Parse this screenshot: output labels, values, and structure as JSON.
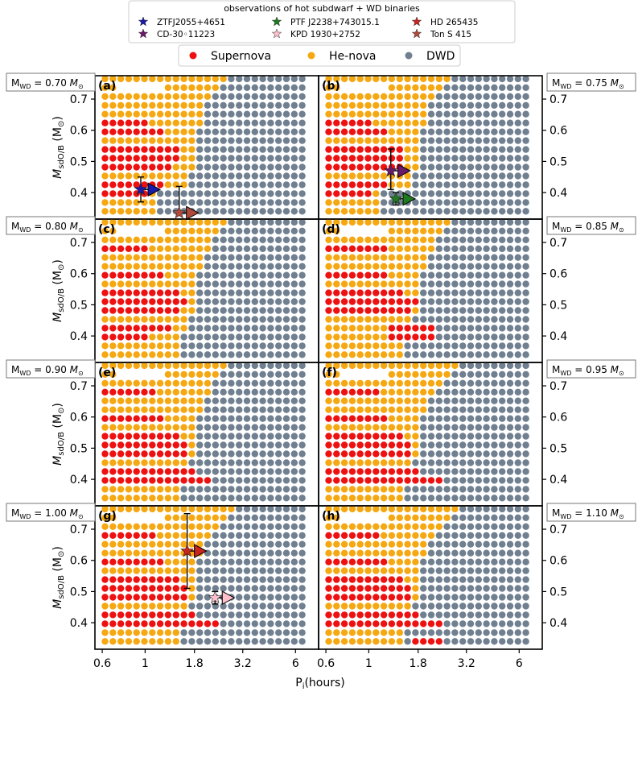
{
  "chart_data": {
    "type": "scatter",
    "title": "",
    "xlabel": "P",
    "xlabel_sub": "i",
    "xlabel_unit": "(hours)",
    "ylabel_main": "M",
    "ylabel_sub": "sdO/B",
    "ylabel_unit": "(M",
    "ylabel_close": ")",
    "xscale": "log",
    "xlim": [
      0.55,
      7.9
    ],
    "ylim": [
      0.315,
      0.775
    ],
    "xticks": [
      0.6,
      1,
      1.8,
      3.2,
      6
    ],
    "xtick_labels": [
      "0.6",
      "1",
      "1.8",
      "3.2",
      "6"
    ],
    "yticks": [
      0.4,
      0.5,
      0.6,
      0.7
    ],
    "ytick_labels": [
      "0.4",
      "0.5",
      "0.6",
      "0.7"
    ],
    "legend_obs_title": "observations of hot subdwarf + WD binaries",
    "observations": [
      {
        "name": "ZTFJ2055+4651",
        "color": "#1a1aa6"
      },
      {
        "name": "PTF J2238+743015.1",
        "color": "#1e7a1e"
      },
      {
        "name": "HD 265435",
        "color": "#c8251e"
      },
      {
        "name": "CD-30◦11223",
        "color": "#6a1a6a"
      },
      {
        "name": "KPD 1930+2752",
        "color": "#ffc0cb"
      },
      {
        "name": "Ton S 415",
        "color": "#b04a3a"
      }
    ],
    "outcomes": [
      {
        "name": "Supernova",
        "color": "#ee1111"
      },
      {
        "name": "He-nova",
        "color": "#f5a811"
      },
      {
        "name": "DWD",
        "color": "#708090"
      }
    ],
    "panels": [
      {
        "label": "(a)",
        "mwd_text": "0.70",
        "hist": [
          1.15,
          1.15,
          1.1,
          1.7,
          1.7,
          1.75,
          1.75,
          1.75,
          1.75,
          1.8,
          2.0,
          2.0,
          2.1,
          2.15,
          2.4,
          2.6
        ],
        "sn": [
          [
            0.62,
            1.0,
            0.635
          ],
          [
            0.62,
            1.2,
            0.59
          ],
          [
            0.62,
            1.45,
            0.55
          ],
          [
            0.62,
            1.45,
            0.51
          ],
          [
            0.62,
            1.4,
            0.47
          ],
          [
            0.62,
            1.3,
            0.43
          ],
          [
            0.62,
            1.05,
            0.405
          ]
        ],
        "obs": [
          {
            "color": "#1a1aa6",
            "p": 0.95,
            "m": 0.41,
            "elo": 0.04,
            "ehi": 0.04,
            "arrow": true
          },
          {
            "color": "#b04a3a",
            "p": 1.5,
            "m": 0.335,
            "elo": 0.0,
            "ehi": 0.085,
            "arrow": true
          }
        ]
      },
      {
        "label": "(b)",
        "mwd_text": "0.75",
        "hist": [
          1.15,
          1.15,
          1.1,
          1.7,
          1.7,
          1.75,
          1.75,
          1.75,
          1.75,
          1.8,
          2.0,
          2.0,
          2.1,
          2.15,
          2.4,
          2.6
        ],
        "sn": [
          [
            0.62,
            1.0,
            0.635
          ],
          [
            0.62,
            1.2,
            0.59
          ],
          [
            0.62,
            1.45,
            0.55
          ],
          [
            0.62,
            1.45,
            0.51
          ],
          [
            0.62,
            1.55,
            0.47
          ],
          [
            0.62,
            1.3,
            0.43
          ],
          [
            0.62,
            1.05,
            0.405
          ]
        ],
        "obs": [
          {
            "color": "#6a1a6a",
            "p": 1.3,
            "m": 0.47,
            "elo": 0.06,
            "ehi": 0.07,
            "arrow": true
          },
          {
            "color": "#1e7a1e",
            "p": 1.38,
            "m": 0.38,
            "elo": 0.02,
            "ehi": 0.02,
            "arrow": true
          }
        ]
      },
      {
        "label": "(c)",
        "mwd_text": "0.80",
        "hist": [
          1.5,
          1.5,
          1.5,
          1.7,
          1.7,
          1.75,
          1.75,
          1.75,
          1.75,
          1.8,
          2.0,
          2.05,
          2.15,
          2.2,
          2.4,
          2.7
        ],
        "sn": [
          [
            0.62,
            1.0,
            0.68
          ],
          [
            0.62,
            1.2,
            0.59
          ],
          [
            0.62,
            1.45,
            0.55
          ],
          [
            0.62,
            1.6,
            0.51
          ],
          [
            0.62,
            1.55,
            0.47
          ],
          [
            0.62,
            1.4,
            0.43
          ],
          [
            0.62,
            1.05,
            0.405
          ]
        ],
        "obs": []
      },
      {
        "label": "(d)",
        "mwd_text": "0.85",
        "hist": [
          1.5,
          1.5,
          1.5,
          1.7,
          1.7,
          1.75,
          1.75,
          1.75,
          1.75,
          1.8,
          2.0,
          2.1,
          2.2,
          2.3,
          2.45,
          2.7
        ],
        "sn": [
          [
            0.62,
            1.2,
            0.68
          ],
          [
            0.62,
            1.3,
            0.59
          ],
          [
            0.62,
            1.5,
            0.55
          ],
          [
            0.62,
            1.75,
            0.51
          ],
          [
            0.62,
            1.65,
            0.47
          ],
          [
            1.25,
            2.2,
            0.41
          ]
        ],
        "obs": []
      },
      {
        "label": "(e)",
        "mwd_text": "0.90",
        "hist": [
          1.5,
          1.5,
          1.5,
          1.7,
          1.7,
          1.75,
          1.75,
          1.75,
          1.75,
          1.8,
          2.0,
          2.1,
          2.2,
          2.3,
          2.5,
          2.7
        ],
        "sn": [
          [
            0.62,
            1.1,
            0.68
          ],
          [
            0.62,
            1.3,
            0.59
          ],
          [
            0.62,
            1.5,
            0.55
          ],
          [
            0.62,
            1.7,
            0.51
          ],
          [
            0.62,
            1.6,
            0.47
          ],
          [
            0.62,
            1.8,
            0.43
          ],
          [
            0.62,
            2.3,
            0.4
          ]
        ],
        "obs": []
      },
      {
        "label": "(f)",
        "mwd_text": "0.95",
        "hist": [
          1.5,
          1.5,
          1.5,
          1.7,
          1.7,
          1.75,
          1.75,
          1.75,
          1.75,
          1.8,
          2.0,
          2.1,
          2.2,
          2.4,
          2.6,
          2.8
        ],
        "sn": [
          [
            0.62,
            1.1,
            0.68
          ],
          [
            0.62,
            1.3,
            0.59
          ],
          [
            0.62,
            1.5,
            0.55
          ],
          [
            0.62,
            1.7,
            0.51
          ],
          [
            0.62,
            1.6,
            0.47
          ],
          [
            0.62,
            1.8,
            0.43
          ],
          [
            0.62,
            2.4,
            0.4
          ]
        ],
        "obs": []
      },
      {
        "label": "(g)",
        "mwd_text": "1.00",
        "hist": [
          1.5,
          1.5,
          1.5,
          1.7,
          1.7,
          1.75,
          1.75,
          1.75,
          1.75,
          1.8,
          2.0,
          2.1,
          2.2,
          2.4,
          2.6,
          2.8
        ],
        "sn": [
          [
            0.62,
            1.1,
            0.68
          ],
          [
            0.62,
            1.3,
            0.59
          ],
          [
            0.62,
            1.5,
            0.55
          ],
          [
            0.62,
            1.7,
            0.51
          ],
          [
            0.62,
            1.6,
            0.47
          ],
          [
            0.62,
            1.8,
            0.43
          ],
          [
            0.62,
            2.4,
            0.4
          ]
        ],
        "obs": [
          {
            "color": "#c8251e",
            "p": 1.65,
            "m": 0.63,
            "elo": 0.12,
            "ehi": 0.12,
            "arrow": true
          },
          {
            "color": "#ffc0cb",
            "p": 2.3,
            "m": 0.48,
            "elo": 0.02,
            "ehi": 0.02,
            "arrow": true
          }
        ]
      },
      {
        "label": "(h)",
        "mwd_text": "1.10",
        "hist": [
          1.5,
          1.5,
          1.5,
          1.7,
          1.7,
          1.75,
          1.75,
          1.75,
          1.75,
          1.8,
          2.0,
          2.1,
          2.2,
          2.4,
          2.6,
          2.8
        ],
        "sn": [
          [
            0.62,
            1.1,
            0.68
          ],
          [
            0.62,
            1.3,
            0.59
          ],
          [
            0.62,
            1.5,
            0.55
          ],
          [
            0.62,
            1.7,
            0.51
          ],
          [
            0.62,
            1.6,
            0.47
          ],
          [
            0.62,
            1.8,
            0.43
          ],
          [
            0.62,
            2.4,
            0.4
          ],
          [
            1.7,
            2.5,
            0.35
          ]
        ],
        "obs": []
      }
    ]
  }
}
